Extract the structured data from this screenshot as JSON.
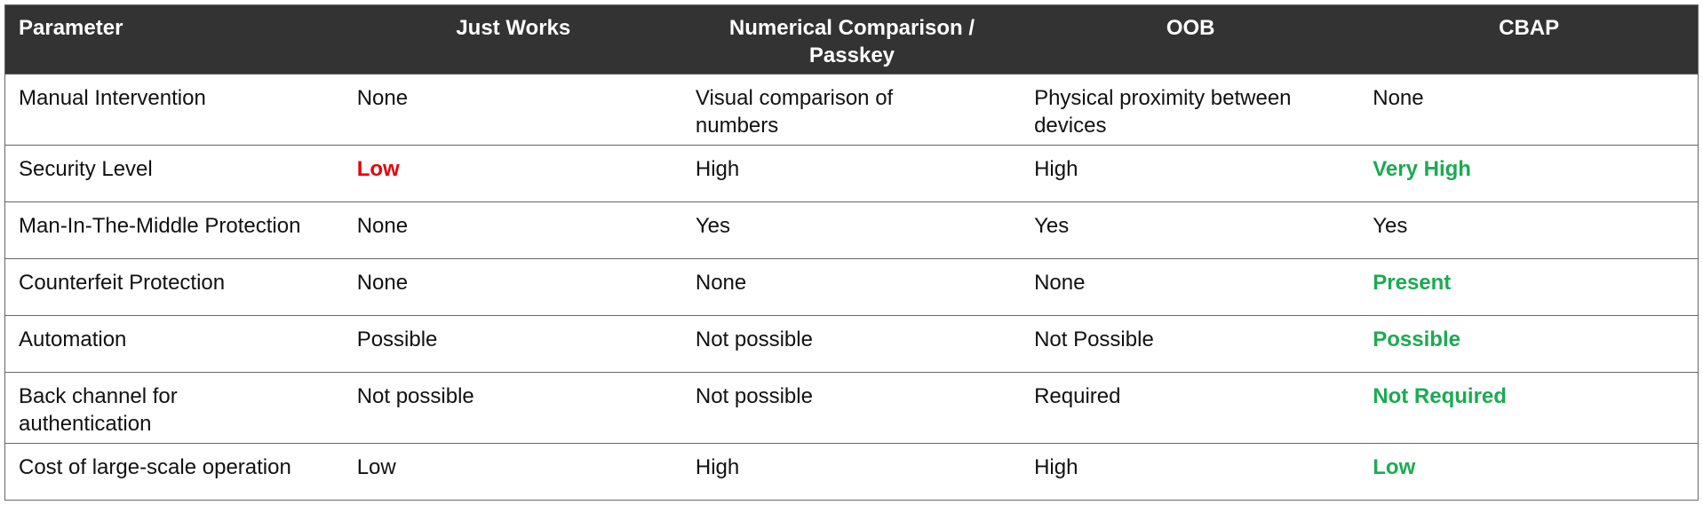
{
  "table": {
    "header": [
      "Parameter",
      "Just Works",
      [
        "Numerical Comparison /",
        "Passkey"
      ],
      "OOB",
      "CBAP"
    ],
    "rows": [
      [
        "Manual Intervention",
        "None",
        [
          "Visual comparison of",
          "numbers"
        ],
        [
          "Physical proximity between",
          "devices"
        ],
        "None"
      ],
      [
        "Security Level",
        {
          "text": "Low",
          "color": "#e8000b"
        },
        "High",
        "High",
        {
          "text": "Very High",
          "color": "#1aab52"
        }
      ],
      [
        "Man-In-The-Middle Protection",
        "None",
        "Yes",
        "Yes",
        "Yes"
      ],
      [
        "Counterfeit Protection",
        "None",
        "None",
        "None",
        {
          "text": "Present",
          "color": "#1aab52"
        }
      ],
      [
        "Automation",
        "Possible",
        "Not possible",
        "Not Possible",
        {
          "text": "Possible",
          "color": "#1aab52"
        }
      ],
      [
        [
          "Back channel for",
          "authentication"
        ],
        "Not possible",
        "Not possible",
        "Required",
        {
          "text": "Not Required",
          "color": "#1aab52"
        }
      ],
      [
        "Cost of large-scale operation",
        "Low",
        "High",
        "High",
        {
          "text": "Low",
          "color": "#1aab52"
        }
      ]
    ]
  }
}
